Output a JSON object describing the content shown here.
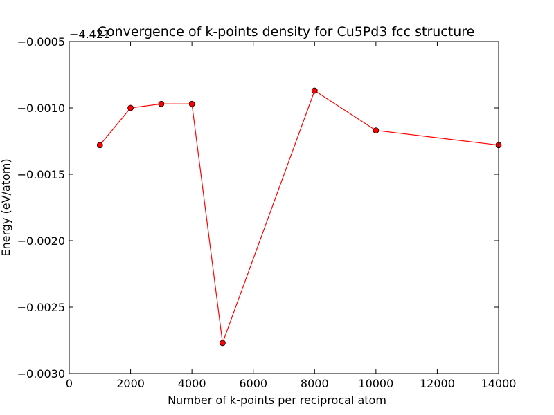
{
  "chart_data": {
    "type": "line",
    "title": "Convergence of k-points density for Cu5Pd3 fcc structure",
    "xlabel": "Number of k-points per reciprocal atom",
    "ylabel": "Energy (eV/atom)",
    "offset_text": "−4.421",
    "xlim": [
      0,
      14000
    ],
    "ylim": [
      -0.003,
      -0.0005
    ],
    "x_ticks": [
      0,
      2000,
      4000,
      6000,
      8000,
      10000,
      12000,
      14000
    ],
    "x_tick_labels": [
      "0",
      "2000",
      "4000",
      "6000",
      "8000",
      "10000",
      "12000",
      "14000"
    ],
    "y_ticks": [
      -0.003,
      -0.0025,
      -0.002,
      -0.0015,
      -0.001,
      -0.0005
    ],
    "y_tick_labels": [
      "−0.0030",
      "−0.0025",
      "−0.0020",
      "−0.0015",
      "−0.0010",
      "−0.0005"
    ],
    "grid": false,
    "series": [
      {
        "color": "#ff0000",
        "marker_color": "#ff0000",
        "x": [
          1000,
          2000,
          3000,
          4000,
          5000,
          8000,
          10000,
          14000
        ],
        "y": [
          -0.00128,
          -0.001,
          -0.00097,
          -0.00097,
          -0.00277,
          -0.00087,
          -0.00117,
          -0.00128
        ]
      }
    ]
  }
}
